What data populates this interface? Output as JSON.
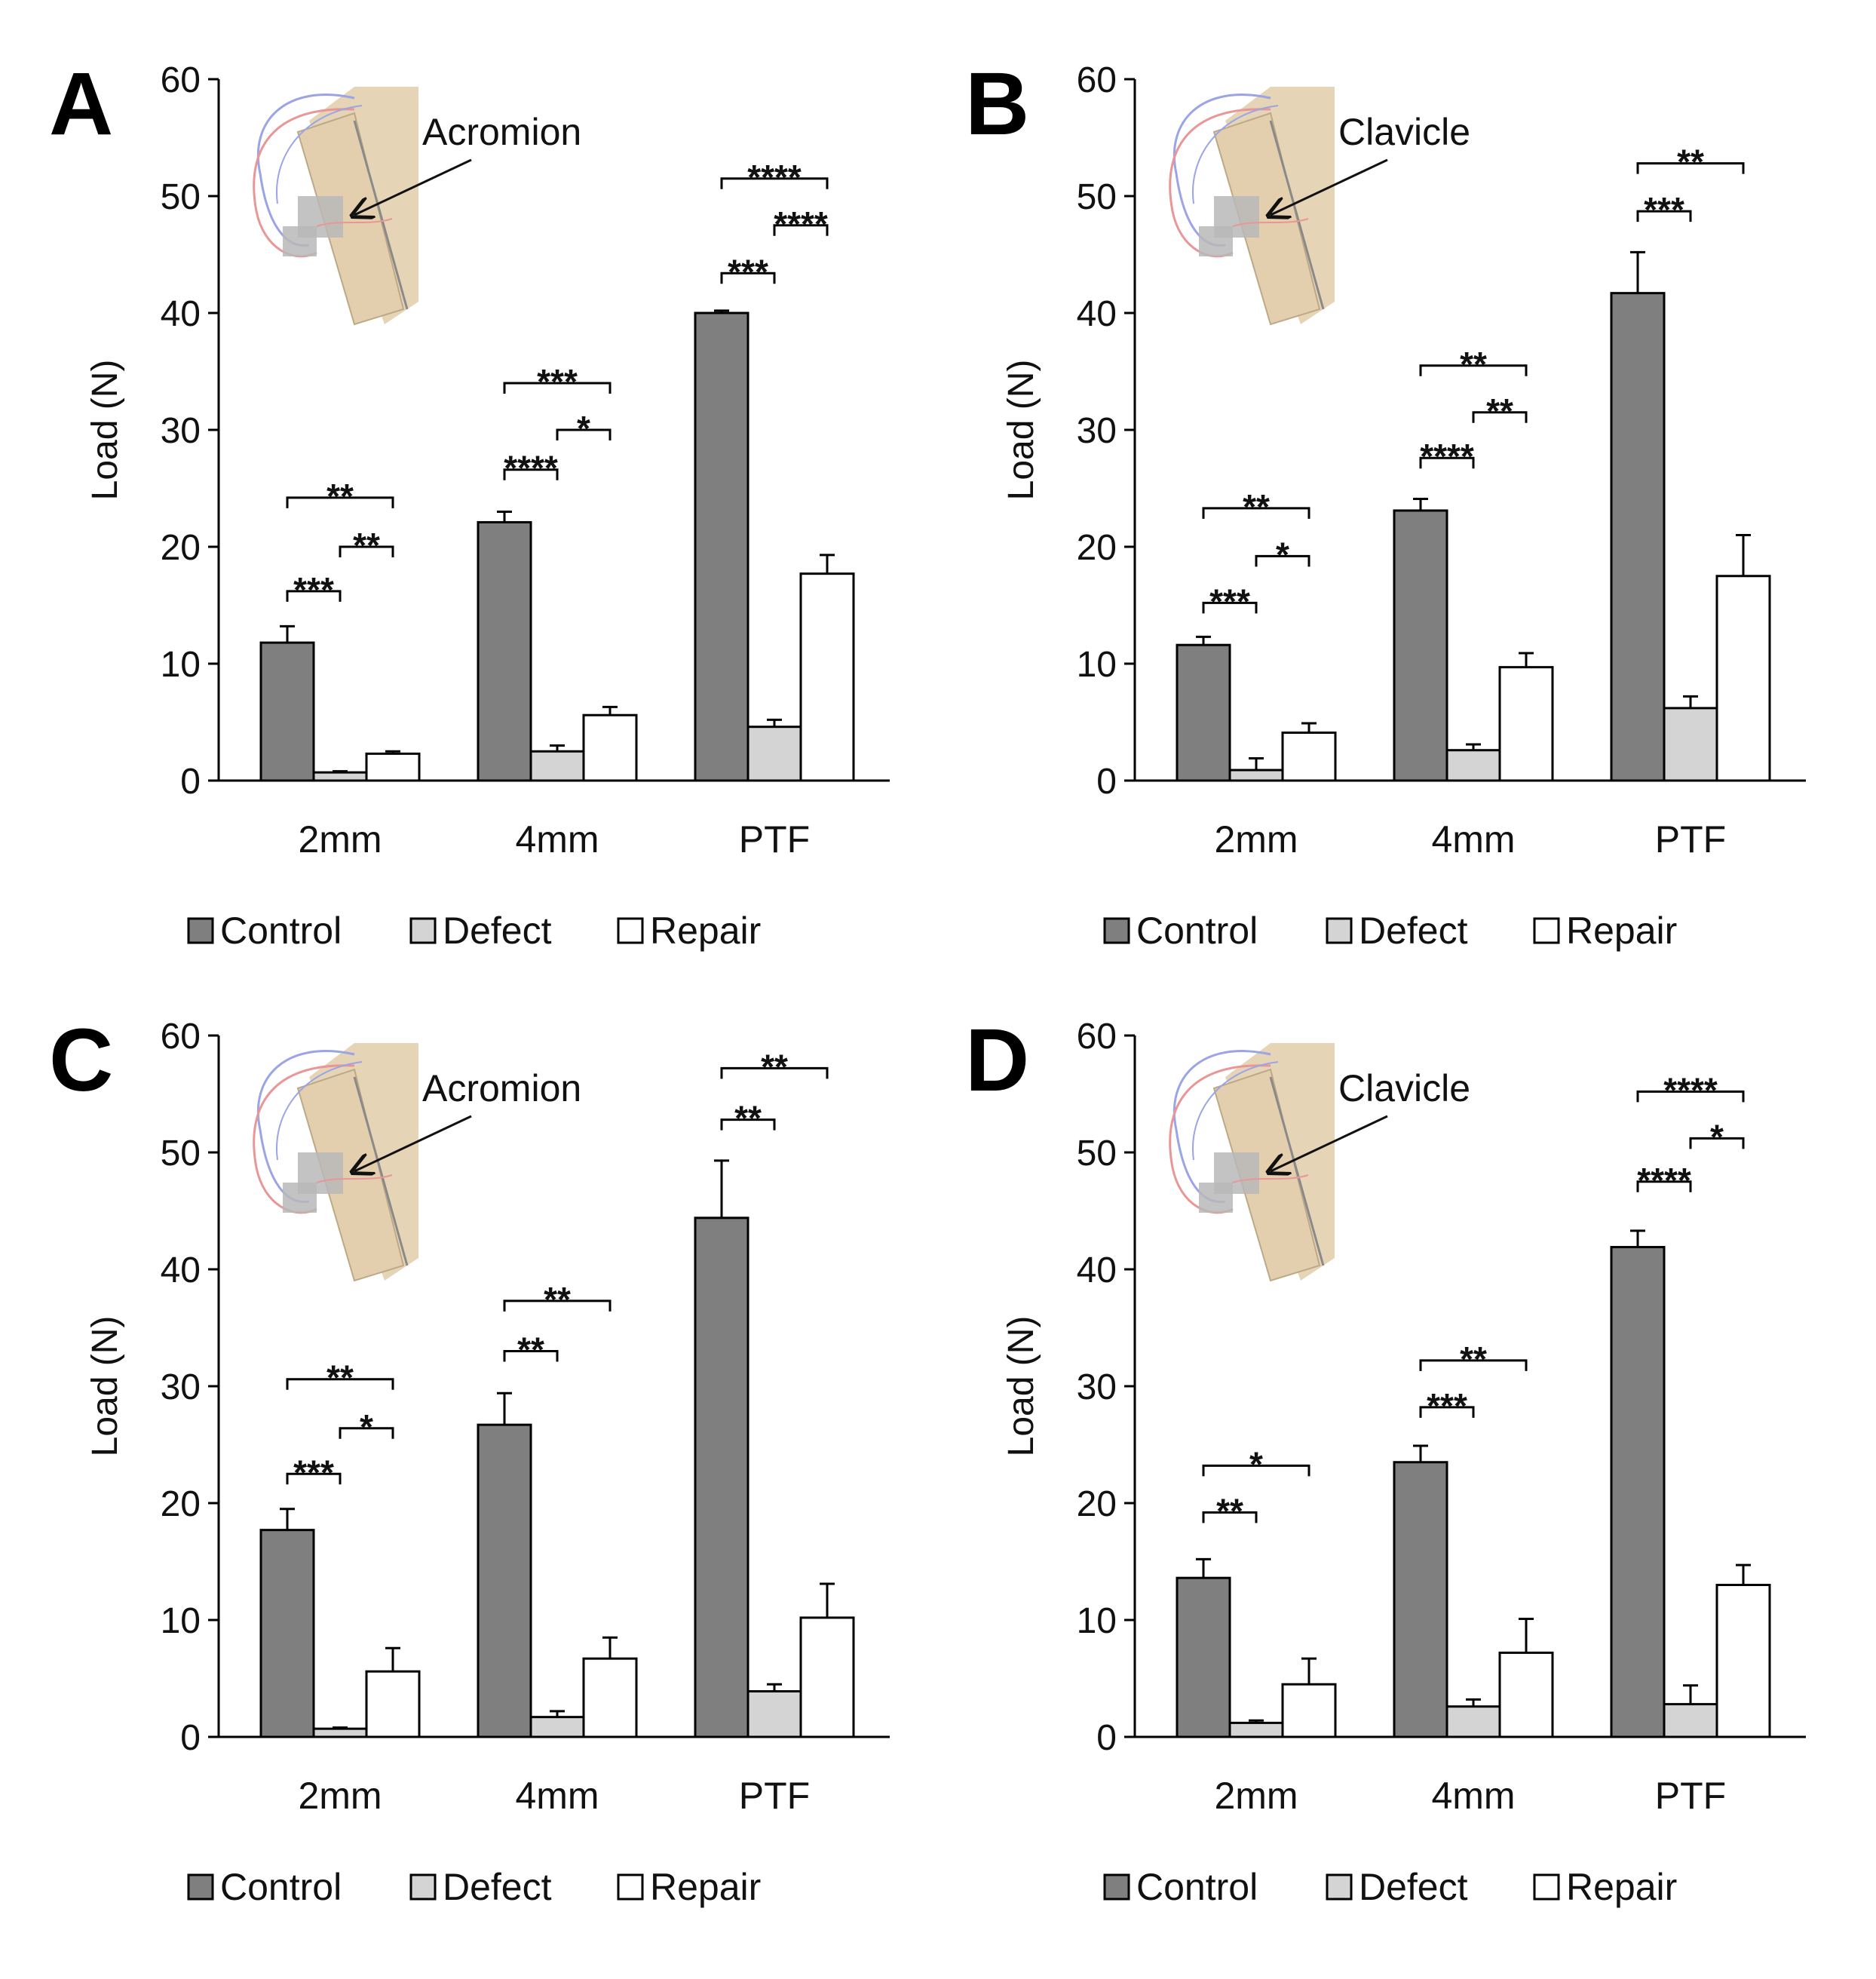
{
  "colors": {
    "control": "#7f7f7f",
    "defect": "#d4d4d4",
    "repair": "#ffffff",
    "axis": "#000000",
    "bone": "#e3cfae",
    "bone_line": "#8a8a8a",
    "fiber_red": "#e99696",
    "fiber_blue": "#9aa4e6",
    "fixture": "#b9b9b9"
  },
  "legend": [
    "Control",
    "Defect",
    "Repair"
  ],
  "chart_data": [
    {
      "panel": "A",
      "type": "bar",
      "ylabel": "Load (N)",
      "ylim": [
        0,
        60
      ],
      "yticks": [
        "0",
        "10",
        "20",
        "30",
        "40",
        "50",
        "60"
      ],
      "categories": [
        "2mm",
        "4mm",
        "PTF"
      ],
      "inset_label": "Acromion",
      "series": [
        {
          "name": "Control",
          "values": [
            11.8,
            22.1,
            40.0
          ],
          "errors": [
            1.4,
            0.9,
            0.2
          ]
        },
        {
          "name": "Defect",
          "values": [
            0.7,
            2.5,
            4.6
          ],
          "errors": [
            0.1,
            0.5,
            0.6
          ]
        },
        {
          "name": "Repair",
          "values": [
            2.3,
            5.6,
            17.7
          ],
          "errors": [
            0.2,
            0.7,
            1.6
          ]
        }
      ],
      "significance": [
        {
          "category": 0,
          "from": 0,
          "to": 1,
          "label": "***",
          "y": 16.2
        },
        {
          "category": 0,
          "from": 1,
          "to": 2,
          "label": "**",
          "y": 20.0
        },
        {
          "category": 0,
          "from": 0,
          "to": 2,
          "label": "**",
          "y": 24.2
        },
        {
          "category": 1,
          "from": 0,
          "to": 1,
          "label": "****",
          "y": 26.6
        },
        {
          "category": 1,
          "from": 1,
          "to": 2,
          "label": "*",
          "y": 30.0
        },
        {
          "category": 1,
          "from": 0,
          "to": 2,
          "label": "***",
          "y": 34.0
        },
        {
          "category": 2,
          "from": 0,
          "to": 1,
          "label": "***",
          "y": 43.4
        },
        {
          "category": 2,
          "from": 1,
          "to": 2,
          "label": "****",
          "y": 47.5
        },
        {
          "category": 2,
          "from": 0,
          "to": 2,
          "label": "****",
          "y": 51.5
        }
      ]
    },
    {
      "panel": "B",
      "type": "bar",
      "ylabel": "Load (N)",
      "ylim": [
        0,
        60
      ],
      "yticks": [
        "0",
        "10",
        "20",
        "30",
        "40",
        "50",
        "60"
      ],
      "categories": [
        "2mm",
        "4mm",
        "PTF"
      ],
      "inset_label": "Clavicle",
      "series": [
        {
          "name": "Control",
          "values": [
            11.6,
            23.1,
            41.7
          ],
          "errors": [
            0.7,
            1.0,
            3.5
          ]
        },
        {
          "name": "Defect",
          "values": [
            0.9,
            2.6,
            6.2
          ],
          "errors": [
            1.0,
            0.5,
            1.0
          ]
        },
        {
          "name": "Repair",
          "values": [
            4.1,
            9.7,
            17.5
          ],
          "errors": [
            0.8,
            1.2,
            3.5
          ]
        }
      ],
      "significance": [
        {
          "category": 0,
          "from": 0,
          "to": 1,
          "label": "***",
          "y": 15.2
        },
        {
          "category": 0,
          "from": 1,
          "to": 2,
          "label": "*",
          "y": 19.2
        },
        {
          "category": 0,
          "from": 0,
          "to": 2,
          "label": "**",
          "y": 23.3
        },
        {
          "category": 1,
          "from": 0,
          "to": 1,
          "label": "****",
          "y": 27.6
        },
        {
          "category": 1,
          "from": 1,
          "to": 2,
          "label": "**",
          "y": 31.5
        },
        {
          "category": 1,
          "from": 0,
          "to": 2,
          "label": "**",
          "y": 35.5
        },
        {
          "category": 2,
          "from": 0,
          "to": 1,
          "label": "***",
          "y": 48.7
        },
        {
          "category": 2,
          "from": 0,
          "to": 2,
          "label": "**",
          "y": 52.8
        }
      ]
    },
    {
      "panel": "C",
      "type": "bar",
      "ylabel": "Load (N)",
      "ylim": [
        0,
        60
      ],
      "yticks": [
        "0",
        "10",
        "20",
        "30",
        "40",
        "50",
        "60"
      ],
      "categories": [
        "2mm",
        "4mm",
        "PTF"
      ],
      "inset_label": "Acromion",
      "series": [
        {
          "name": "Control",
          "values": [
            17.7,
            26.7,
            44.4
          ],
          "errors": [
            1.8,
            2.7,
            4.9
          ]
        },
        {
          "name": "Defect",
          "values": [
            0.7,
            1.7,
            3.9
          ],
          "errors": [
            0.1,
            0.5,
            0.6
          ]
        },
        {
          "name": "Repair",
          "values": [
            5.6,
            6.7,
            10.2
          ],
          "errors": [
            2.0,
            1.8,
            2.9
          ]
        }
      ],
      "significance": [
        {
          "category": 0,
          "from": 0,
          "to": 1,
          "label": "***",
          "y": 22.5
        },
        {
          "category": 0,
          "from": 1,
          "to": 2,
          "label": "*",
          "y": 26.4
        },
        {
          "category": 0,
          "from": 0,
          "to": 2,
          "label": "**",
          "y": 30.6
        },
        {
          "category": 1,
          "from": 0,
          "to": 1,
          "label": "**",
          "y": 33.0
        },
        {
          "category": 1,
          "from": 0,
          "to": 2,
          "label": "**",
          "y": 37.3
        },
        {
          "category": 2,
          "from": 0,
          "to": 1,
          "label": "**",
          "y": 52.8
        },
        {
          "category": 2,
          "from": 0,
          "to": 2,
          "label": "**",
          "y": 57.2
        }
      ]
    },
    {
      "panel": "D",
      "type": "bar",
      "ylabel": "Load (N)",
      "ylim": [
        0,
        60
      ],
      "yticks": [
        "0",
        "10",
        "20",
        "30",
        "40",
        "50",
        "60"
      ],
      "categories": [
        "2mm",
        "4mm",
        "PTF"
      ],
      "inset_label": "Clavicle",
      "series": [
        {
          "name": "Control",
          "values": [
            13.6,
            23.5,
            41.9
          ],
          "errors": [
            1.6,
            1.4,
            1.4
          ]
        },
        {
          "name": "Defect",
          "values": [
            1.2,
            2.6,
            2.8
          ],
          "errors": [
            0.2,
            0.6,
            1.6
          ]
        },
        {
          "name": "Repair",
          "values": [
            4.5,
            7.2,
            13.0
          ],
          "errors": [
            2.2,
            2.9,
            1.7
          ]
        }
      ],
      "significance": [
        {
          "category": 0,
          "from": 0,
          "to": 1,
          "label": "**",
          "y": 19.2
        },
        {
          "category": 0,
          "from": 0,
          "to": 2,
          "label": "*",
          "y": 23.2
        },
        {
          "category": 1,
          "from": 0,
          "to": 1,
          "label": "***",
          "y": 28.2
        },
        {
          "category": 1,
          "from": 0,
          "to": 2,
          "label": "**",
          "y": 32.2
        },
        {
          "category": 2,
          "from": 0,
          "to": 1,
          "label": "****",
          "y": 47.5
        },
        {
          "category": 2,
          "from": 1,
          "to": 2,
          "label": "*",
          "y": 51.2
        },
        {
          "category": 2,
          "from": 0,
          "to": 2,
          "label": "****",
          "y": 55.2
        }
      ]
    }
  ]
}
